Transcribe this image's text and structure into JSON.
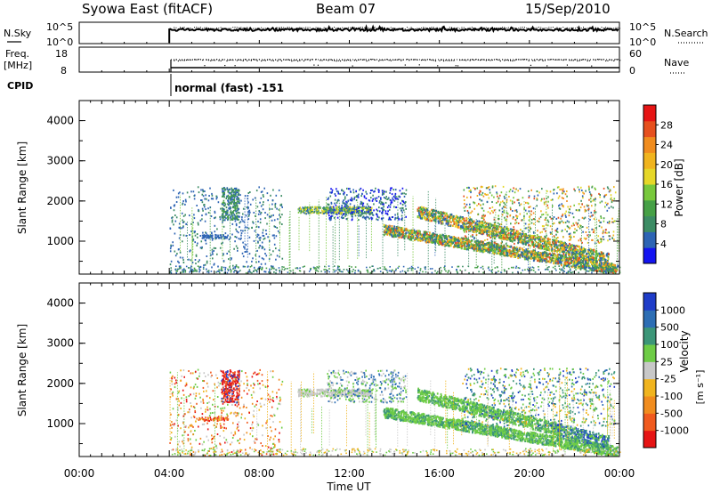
{
  "header": {
    "station": "Syowa East (fitACF)",
    "beam": "Beam 07",
    "date": "15/Sep/2010"
  },
  "noise_panel": {
    "left_label": "N.Sky",
    "left_ticks": [
      "10^5",
      "10^0"
    ],
    "right_ticks": [
      "10^5",
      "10^0"
    ],
    "right_label": "N.Search"
  },
  "freq_panel": {
    "left_label": "Freq.",
    "left_unit": "[MHz]",
    "left_ticks": [
      "18",
      "8"
    ],
    "right_ticks": [
      "60",
      "0"
    ],
    "right_label": "Nave"
  },
  "cpid": {
    "label": "CPID",
    "mode_text": "normal (fast) -151"
  },
  "chart_data": [
    {
      "type": "heatmap",
      "parameter": "Power",
      "ylabel": "Slant Range [km]",
      "ylim": [
        180,
        4500
      ],
      "yticks": [
        "1000",
        "2000",
        "3000",
        "4000"
      ],
      "xlim_hours": [
        0,
        24
      ],
      "colorbar": {
        "title": "Power [dB]",
        "tick_labels": [
          "4",
          "8",
          "12",
          "16",
          "20",
          "24",
          "28"
        ],
        "colors": [
          "#1414f0",
          "#2d64b4",
          "#3c8c64",
          "#46a046",
          "#78c83c",
          "#e6d728",
          "#f0b41e",
          "#f08c1e",
          "#e6501e",
          "#e61414"
        ]
      }
    },
    {
      "type": "heatmap",
      "parameter": "Velocity",
      "ylabel": "Slant Range [km]",
      "ylim": [
        180,
        4500
      ],
      "yticks": [
        "1000",
        "2000",
        "3000",
        "4000"
      ],
      "xlim_hours": [
        0,
        24
      ],
      "xlabel": "Time UT",
      "xticks": [
        "00:00",
        "04:00",
        "08:00",
        "12:00",
        "16:00",
        "20:00",
        "00:00"
      ],
      "colorbar": {
        "title": "Velocity",
        "unit": "[m s⁻¹]",
        "tick_labels": [
          "1000",
          "500",
          "100",
          "25",
          "-25",
          "-100",
          "-500",
          "-1000"
        ],
        "colors": [
          "#1e3cc8",
          "#2d6eb4",
          "#3c9678",
          "#6ecc46",
          "#c8c8c8",
          "#f0b41e",
          "#f08c1e",
          "#f05a1e",
          "#e61414"
        ]
      }
    }
  ]
}
